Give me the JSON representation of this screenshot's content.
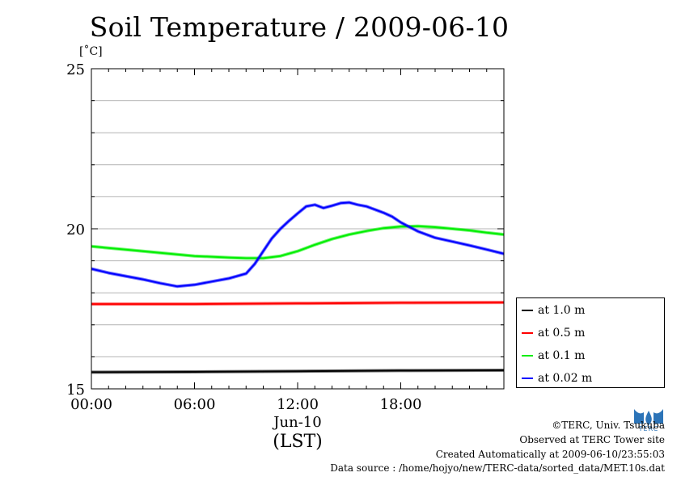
{
  "chart_data": {
    "type": "line",
    "title": "Soil Temperature / 2009-06-10",
    "ylabel": "[˚C]",
    "xlabel": "(LST)",
    "x_date_label": "Jun-10",
    "xlim": [
      0,
      24
    ],
    "ylim": [
      15,
      25
    ],
    "x_ticks": [
      {
        "value": 0,
        "label": "00:00"
      },
      {
        "value": 6,
        "label": "06:00"
      },
      {
        "value": 12,
        "label": "12:00"
      },
      {
        "value": 18,
        "label": "18:00"
      }
    ],
    "y_ticks": [
      {
        "value": 15,
        "label": "15"
      },
      {
        "value": 20,
        "label": "20"
      },
      {
        "value": 25,
        "label": "25"
      }
    ],
    "grid": true,
    "legend_position": "right-bottom-outside",
    "series": [
      {
        "name": "at 1.0 m",
        "color": "#000000",
        "x": [
          0,
          6,
          12,
          18,
          24
        ],
        "y": [
          15.52,
          15.53,
          15.55,
          15.57,
          15.58
        ]
      },
      {
        "name": "at 0.5 m",
        "color": "#ff0000",
        "x": [
          0,
          6,
          12,
          18,
          24
        ],
        "y": [
          17.65,
          17.65,
          17.67,
          17.69,
          17.7
        ]
      },
      {
        "name": "at 0.1 m",
        "color": "#00ee00",
        "x": [
          0,
          2,
          4,
          6,
          8,
          9,
          10,
          11,
          12,
          13,
          14,
          15,
          16,
          17,
          18,
          19,
          20,
          21,
          22,
          23,
          24
        ],
        "y": [
          19.45,
          19.35,
          19.25,
          19.15,
          19.1,
          19.08,
          19.08,
          19.15,
          19.3,
          19.5,
          19.68,
          19.82,
          19.93,
          20.02,
          20.07,
          20.08,
          20.05,
          20.0,
          19.95,
          19.88,
          19.82
        ]
      },
      {
        "name": "at 0.02 m",
        "color": "#0000ff",
        "x": [
          0,
          1,
          2,
          3,
          4,
          5,
          6,
          7,
          8,
          9,
          9.5,
          10,
          10.5,
          11,
          11.5,
          12,
          12.5,
          13,
          13.5,
          14,
          14.5,
          15,
          15.5,
          16,
          16.5,
          17,
          17.5,
          18,
          19,
          20,
          21,
          22,
          23,
          24
        ],
        "y": [
          18.75,
          18.62,
          18.52,
          18.42,
          18.3,
          18.2,
          18.25,
          18.35,
          18.45,
          18.6,
          18.9,
          19.3,
          19.7,
          20.0,
          20.25,
          20.48,
          20.7,
          20.75,
          20.65,
          20.72,
          20.8,
          20.82,
          20.75,
          20.7,
          20.6,
          20.5,
          20.38,
          20.2,
          19.92,
          19.72,
          19.6,
          19.48,
          19.35,
          19.22
        ]
      }
    ]
  },
  "footer": {
    "copyright": "©TERC, Univ. Tsukuba",
    "observed": "Observed at TERC Tower site",
    "created": "Created Automatically at 2009-06-10/23:55:03",
    "source": "Data source : /home/hojyo/new/TERC-data/sorted_data/MET.10s.dat",
    "logo_text": "TERC",
    "logo_color": "#2c74b8"
  }
}
